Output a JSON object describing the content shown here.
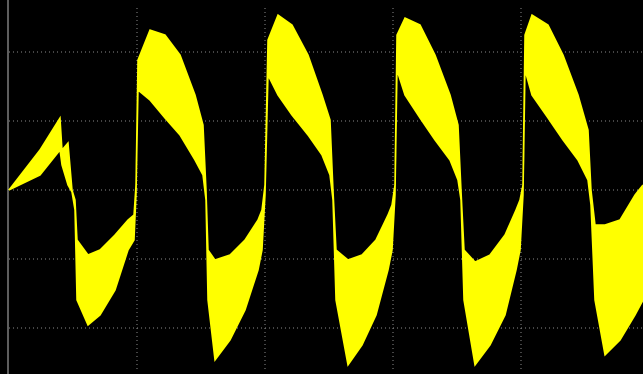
{
  "chart_data": {
    "type": "area",
    "background": "#000000",
    "grid": true,
    "grid_color": "#8a8a8a",
    "xlim": [
      0,
      634
    ],
    "xticks": [
      128,
      256,
      384,
      512
    ],
    "ylim": [
      -182,
      182
    ],
    "yticks": [
      -138,
      -69,
      0,
      69,
      138
    ],
    "x": [
      0,
      31,
      51,
      53,
      59,
      63,
      66,
      68,
      79,
      91,
      106,
      119,
      125,
      127,
      129,
      141,
      156,
      171,
      186,
      194,
      197,
      199,
      206,
      221,
      236,
      249,
      253,
      256,
      259,
      269,
      283,
      299,
      313,
      321,
      324,
      327,
      339,
      353,
      367,
      379,
      383,
      386,
      388,
      396,
      411,
      426,
      441,
      449,
      452,
      455,
      466,
      481,
      496,
      507,
      511,
      514,
      516,
      523,
      539,
      554,
      569,
      579,
      582,
      586,
      596,
      611,
      626,
      634
    ],
    "series": [
      {
        "color": "#ffff00",
        "values": [
          0,
          40,
          72,
          40,
          47,
          0,
          -10,
          -50,
          -65,
          -60,
          -45,
          -30,
          -25,
          5,
          130,
          160,
          155,
          135,
          95,
          65,
          0,
          -60,
          -70,
          -65,
          -50,
          -30,
          -20,
          5,
          150,
          175,
          165,
          135,
          95,
          70,
          0,
          -60,
          -70,
          -65,
          -50,
          -25,
          -15,
          5,
          155,
          172,
          165,
          135,
          95,
          65,
          0,
          -60,
          -72,
          -65,
          -45,
          -20,
          -10,
          5,
          155,
          175,
          165,
          135,
          95,
          60,
          0,
          -35,
          -35,
          -30,
          -5,
          5
        ]
      },
      {
        "color": "#ffff00",
        "values": [
          0,
          15,
          40,
          25,
          5,
          -2,
          -20,
          -110,
          -135,
          -125,
          -100,
          -60,
          -50,
          -5,
          100,
          90,
          72,
          55,
          30,
          15,
          -10,
          -110,
          -170,
          -150,
          -120,
          -80,
          -60,
          -5,
          115,
          95,
          75,
          55,
          35,
          15,
          -10,
          -110,
          -175,
          -155,
          -125,
          -80,
          -60,
          -5,
          120,
          95,
          72,
          50,
          30,
          10,
          -10,
          -110,
          -175,
          -155,
          -125,
          -80,
          -60,
          -5,
          120,
          95,
          72,
          50,
          30,
          10,
          -15,
          -110,
          -165,
          -150,
          -125,
          -110
        ]
      }
    ]
  }
}
